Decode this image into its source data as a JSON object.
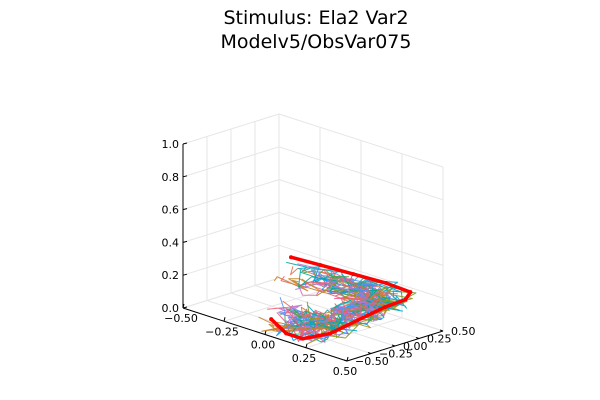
{
  "chart_data": {
    "type": "line",
    "projection": "3d",
    "title_lines": [
      "Stimulus: Ela2 Var2",
      "Modelv5/ObsVar075"
    ],
    "xlabel": "",
    "ylabel": "",
    "zlabel": "",
    "xlim": [
      -0.5,
      0.5
    ],
    "ylim": [
      -0.5,
      0.5
    ],
    "zlim": [
      0.0,
      1.0
    ],
    "x_ticks": [
      "−0.50",
      "−0.25",
      "0.00",
      "0.25",
      "0.50"
    ],
    "y_ticks": [
      "−0.50",
      "−0.25",
      "0.00",
      "0.25",
      "0.50"
    ],
    "z_ticks": [
      "0.0",
      "0.2",
      "0.4",
      "0.6",
      "0.8",
      "1.0"
    ],
    "grid": true,
    "legend": "none",
    "stimulus_path": {
      "color": "#ff0000",
      "points": [
        [
          -0.38,
          0.42,
          0.18
        ],
        [
          -0.2,
          0.42,
          0.19
        ],
        [
          0.0,
          0.42,
          0.2
        ],
        [
          0.2,
          0.42,
          0.21
        ],
        [
          0.36,
          0.4,
          0.21
        ],
        [
          0.4,
          0.28,
          0.2
        ],
        [
          0.38,
          0.1,
          0.18
        ],
        [
          0.33,
          -0.1,
          0.12
        ],
        [
          0.28,
          -0.3,
          0.06
        ],
        [
          0.2,
          -0.45,
          0.03
        ],
        [
          0.1,
          -0.45,
          0.03
        ],
        [
          -0.05,
          -0.35,
          0.05
        ]
      ]
    },
    "simulation_series_count": 30,
    "series_colors": [
      "#009af9",
      "#e26f46",
      "#3da44d",
      "#c271d2",
      "#ac8e18",
      "#00a9ad",
      "#ed5e93",
      "#c68225",
      "#00a98d",
      "#8e971e",
      "#00a9cd",
      "#9b7fe8",
      "#618df6",
      "#f05f73",
      "#dd64b5",
      "#6b9e32"
    ]
  }
}
